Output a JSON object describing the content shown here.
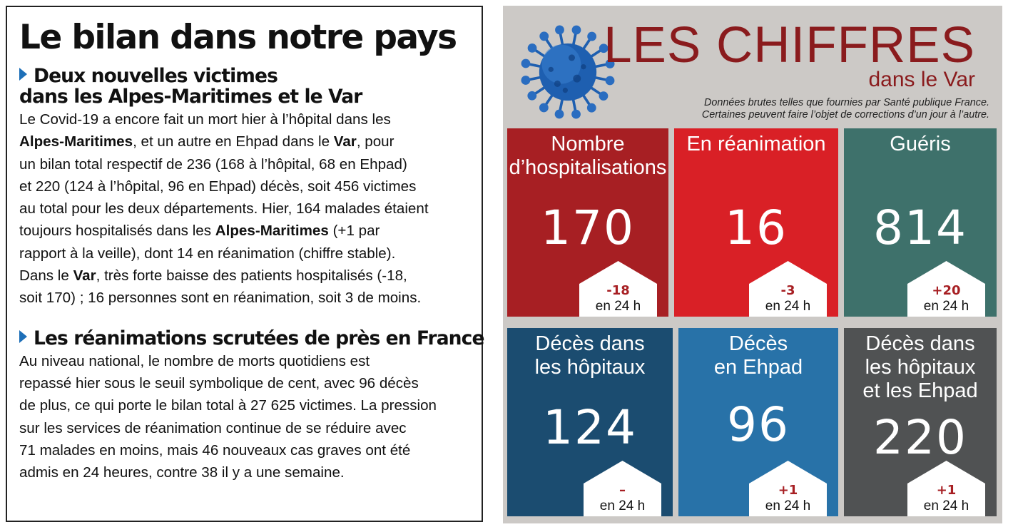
{
  "article": {
    "title": "Le bilan dans notre pays",
    "sections": [
      {
        "heading_lines": [
          "Deux nouvelles victimes",
          "dans les Alpes-Maritimes et le Var"
        ],
        "lines": [
          [
            "Le Covid-19 a encore fait un mort hier à l’hôpital dans les"
          ],
          [
            "|Alpes-Maritimes",
            ", et un autre en Ehpad dans le ",
            "|Var",
            ", pour"
          ],
          [
            "un bilan total respectif de 236 (168 à l’hôpital, 68 en Ehpad)"
          ],
          [
            "et 220 (124 à l’hôpital, 96 en Ehpad) décès, soit 456 victimes"
          ],
          [
            "au total pour les deux départements. Hier, 164 malades étaient"
          ],
          [
            "toujours hospitalisés dans les ",
            "|Alpes-Maritimes",
            " (+1 par"
          ],
          [
            "rapport à la veille), dont 14 en réanimation (chiffre stable)."
          ],
          [
            "Dans le ",
            "|Var",
            ", très forte baisse des patients hospitalisés (-18,"
          ],
          [
            "soit 170) ; 16 personnes sont en réanimation, soit 3 de moins."
          ]
        ]
      },
      {
        "heading_lines": [
          "Les réanimations scrutées de près en France"
        ],
        "lines": [
          [
            "Au niveau national, le nombre de morts quotidiens est"
          ],
          [
            "repassé hier sous le seuil symbolique de cent, avec 96 décès"
          ],
          [
            "de plus, ce qui porte le bilan total à 27 625 victimes. La pression"
          ],
          [
            "sur les services de réanimation continue de se réduire avec"
          ],
          [
            "71 malades en moins, mais 46 nouveaux cas graves ont été"
          ],
          [
            "admis en 24 heures, contre 38 il y a une semaine."
          ]
        ]
      }
    ]
  },
  "infographic": {
    "title": "LES CHIFFRES",
    "subtitle": "dans le Var",
    "note_lines": [
      "Données brutes telles que fournies par Santé publique France.",
      "Certaines peuvent faire l’objet de corrections d’un jour à l’autre."
    ],
    "background_color": "#ccc9c6",
    "title_color": "#8a1b1d",
    "icon": "virus-icon",
    "tiles": [
      {
        "name": "hospitalisations",
        "label_lines": [
          "Nombre",
          "d’hospitalisations"
        ],
        "value": "170",
        "delta": "-18",
        "delta_caption": "en 24 h",
        "color": "#a71f23",
        "delta_color": "#a71f23"
      },
      {
        "name": "reanimation",
        "label_lines": [
          "En réanimation"
        ],
        "value": "16",
        "delta": "-3",
        "delta_caption": "en 24 h",
        "color": "#d92026",
        "delta_color": "#a71f23"
      },
      {
        "name": "gueris",
        "label_lines": [
          "Guéris"
        ],
        "value": "814",
        "delta": "+20",
        "delta_caption": "en 24 h",
        "color": "#3e716b",
        "delta_color": "#a71f23"
      },
      {
        "name": "deces-hopitaux",
        "label_lines": [
          "Décès dans",
          "les hôpitaux"
        ],
        "value": "124",
        "delta": "–",
        "delta_caption": "en 24 h",
        "color": "#1b4c70",
        "delta_color": "#a71f23"
      },
      {
        "name": "deces-ehpad",
        "label_lines": [
          "Décès",
          "en Ehpad"
        ],
        "value": "96",
        "delta": "+1",
        "delta_caption": "en 24 h",
        "color": "#2872a8",
        "delta_color": "#a71f23"
      },
      {
        "name": "deces-total",
        "label_lines": [
          "Décès dans",
          "les hôpitaux",
          "et les Ehpad"
        ],
        "value": "220",
        "delta": "+1",
        "delta_caption": "en 24 h",
        "color": "#505253",
        "delta_color": "#a71f23"
      }
    ]
  }
}
